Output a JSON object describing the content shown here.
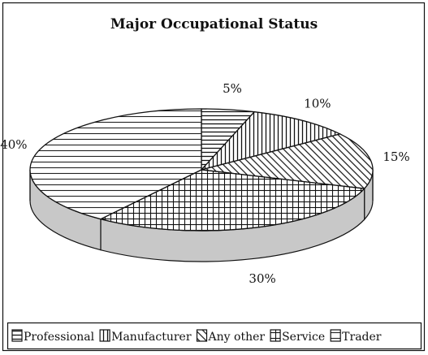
{
  "chart_data": {
    "type": "pie",
    "title": "Major Occupational Status",
    "slices": [
      {
        "label": "Professional",
        "value": 5,
        "value_label": "5%",
        "pattern": "horizontal"
      },
      {
        "label": "Manufacturer",
        "value": 10,
        "value_label": "10%",
        "pattern": "vertical"
      },
      {
        "label": "Any other",
        "value": 15,
        "value_label": "15%",
        "pattern": "diagonal"
      },
      {
        "label": "Service",
        "value": 30,
        "value_label": "30%",
        "pattern": "grid"
      },
      {
        "label": "Trader",
        "value": 40,
        "value_label": "40%",
        "pattern": "horizontal-wide"
      }
    ],
    "legend_position": "bottom",
    "style": "3d-monochrome-hatched"
  }
}
